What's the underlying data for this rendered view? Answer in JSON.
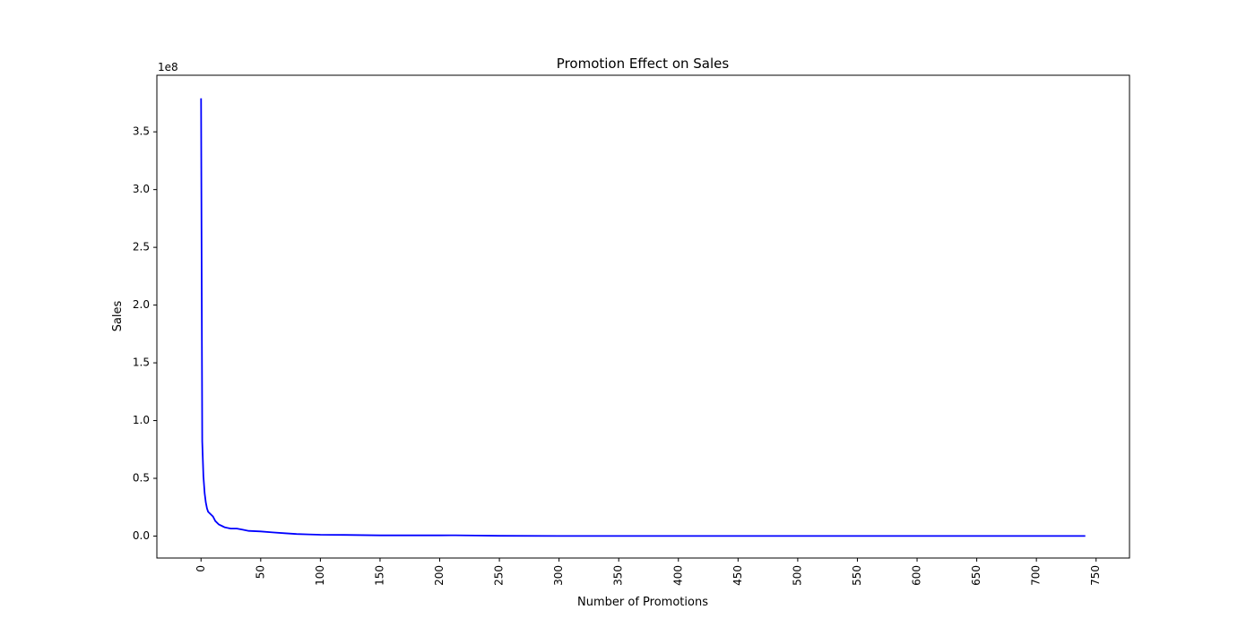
{
  "chart_data": {
    "type": "line",
    "title": "Promotion Effect on Sales",
    "xlabel": "Number of Promotions",
    "ylabel": "Sales",
    "y_offset_label": "1e8",
    "xlim": [
      -37,
      778
    ],
    "ylim": [
      -0.19,
      3.99
    ],
    "x_ticks": [
      0,
      50,
      100,
      150,
      200,
      250,
      300,
      350,
      400,
      450,
      500,
      550,
      600,
      650,
      700,
      750
    ],
    "x_tick_labels": [
      "0",
      "50",
      "100",
      "150",
      "200",
      "250",
      "300",
      "350",
      "400",
      "450",
      "500",
      "550",
      "600",
      "650",
      "700",
      "750"
    ],
    "y_ticks": [
      0.0,
      0.5,
      1.0,
      1.5,
      2.0,
      2.5,
      3.0,
      3.5
    ],
    "y_tick_labels": [
      "0.0",
      "0.5",
      "1.0",
      "1.5",
      "2.0",
      "2.5",
      "3.0",
      "3.5"
    ],
    "grid": false,
    "series": [
      {
        "color": "#0000ff",
        "x": [
          0,
          1,
          2,
          3,
          4,
          5,
          6,
          8,
          10,
          12,
          15,
          18,
          20,
          25,
          30,
          35,
          40,
          50,
          60,
          70,
          80,
          90,
          100,
          120,
          150,
          180,
          200,
          210,
          230,
          250,
          300,
          400,
          500,
          600,
          700,
          741
        ],
        "y": [
          3.79,
          0.82,
          0.52,
          0.37,
          0.29,
          0.24,
          0.21,
          0.19,
          0.17,
          0.13,
          0.1,
          0.085,
          0.075,
          0.065,
          0.065,
          0.055,
          0.045,
          0.04,
          0.032,
          0.025,
          0.018,
          0.015,
          0.012,
          0.01,
          0.006,
          0.006,
          0.006,
          0.007,
          0.005,
          0.002,
          0.001,
          0.001,
          0.001,
          0.001,
          0.001,
          0.001
        ]
      }
    ]
  }
}
